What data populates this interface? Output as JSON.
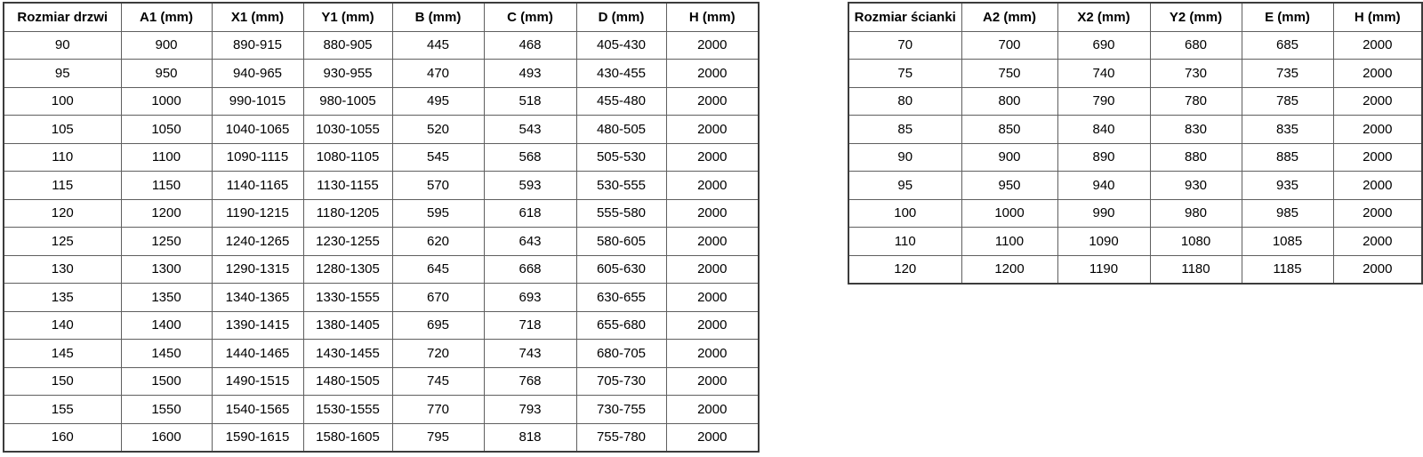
{
  "left_table": {
    "name": "door-size-table",
    "headers": [
      "Rozmiar drzwi",
      "A1 (mm)",
      "X1 (mm)",
      "Y1 (mm)",
      "B (mm)",
      "C (mm)",
      "D (mm)",
      "H (mm)"
    ],
    "rows": [
      [
        "90",
        "900",
        "890-915",
        "880-905",
        "445",
        "468",
        "405-430",
        "2000"
      ],
      [
        "95",
        "950",
        "940-965",
        "930-955",
        "470",
        "493",
        "430-455",
        "2000"
      ],
      [
        "100",
        "1000",
        "990-1015",
        "980-1005",
        "495",
        "518",
        "455-480",
        "2000"
      ],
      [
        "105",
        "1050",
        "1040-1065",
        "1030-1055",
        "520",
        "543",
        "480-505",
        "2000"
      ],
      [
        "110",
        "1100",
        "1090-1115",
        "1080-1105",
        "545",
        "568",
        "505-530",
        "2000"
      ],
      [
        "115",
        "1150",
        "1140-1165",
        "1130-1155",
        "570",
        "593",
        "530-555",
        "2000"
      ],
      [
        "120",
        "1200",
        "1190-1215",
        "1180-1205",
        "595",
        "618",
        "555-580",
        "2000"
      ],
      [
        "125",
        "1250",
        "1240-1265",
        "1230-1255",
        "620",
        "643",
        "580-605",
        "2000"
      ],
      [
        "130",
        "1300",
        "1290-1315",
        "1280-1305",
        "645",
        "668",
        "605-630",
        "2000"
      ],
      [
        "135",
        "1350",
        "1340-1365",
        "1330-1555",
        "670",
        "693",
        "630-655",
        "2000"
      ],
      [
        "140",
        "1400",
        "1390-1415",
        "1380-1405",
        "695",
        "718",
        "655-680",
        "2000"
      ],
      [
        "145",
        "1450",
        "1440-1465",
        "1430-1455",
        "720",
        "743",
        "680-705",
        "2000"
      ],
      [
        "150",
        "1500",
        "1490-1515",
        "1480-1505",
        "745",
        "768",
        "705-730",
        "2000"
      ],
      [
        "155",
        "1550",
        "1540-1565",
        "1530-1555",
        "770",
        "793",
        "730-755",
        "2000"
      ],
      [
        "160",
        "1600",
        "1590-1615",
        "1580-1605",
        "795",
        "818",
        "755-780",
        "2000"
      ]
    ]
  },
  "right_table": {
    "name": "wall-size-table",
    "headers": [
      "Rozmiar ścianki",
      "A2 (mm)",
      "X2 (mm)",
      "Y2 (mm)",
      "E (mm)",
      "H (mm)"
    ],
    "rows": [
      [
        "70",
        "700",
        "690",
        "680",
        "685",
        "2000"
      ],
      [
        "75",
        "750",
        "740",
        "730",
        "735",
        "2000"
      ],
      [
        "80",
        "800",
        "790",
        "780",
        "785",
        "2000"
      ],
      [
        "85",
        "850",
        "840",
        "830",
        "835",
        "2000"
      ],
      [
        "90",
        "900",
        "890",
        "880",
        "885",
        "2000"
      ],
      [
        "95",
        "950",
        "940",
        "930",
        "935",
        "2000"
      ],
      [
        "100",
        "1000",
        "990",
        "980",
        "985",
        "2000"
      ],
      [
        "110",
        "1100",
        "1090",
        "1080",
        "1085",
        "2000"
      ],
      [
        "120",
        "1200",
        "1190",
        "1180",
        "1185",
        "2000"
      ]
    ]
  },
  "colors": {
    "background": "#ffffff",
    "text": "#000000",
    "border_inner": "#5f5f5f",
    "border_outer": "#3c3c3c"
  }
}
